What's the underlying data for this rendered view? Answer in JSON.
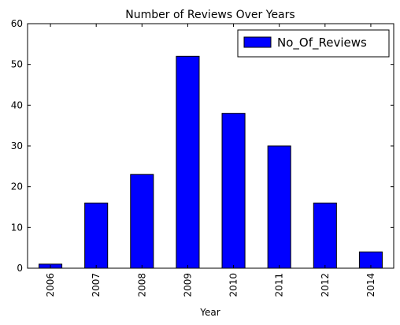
{
  "chart_data": {
    "type": "bar",
    "title": "Number of Reviews Over Years",
    "xlabel": "Year",
    "ylabel": "",
    "categories": [
      "2006",
      "2007",
      "2008",
      "2009",
      "2010",
      "2011",
      "2012",
      "2014"
    ],
    "series": [
      {
        "name": "No_Of_Reviews",
        "values": [
          1,
          16,
          23,
          52,
          38,
          30,
          16,
          4
        ],
        "color": "#0000ff"
      }
    ],
    "ylim": [
      0,
      60
    ],
    "yticks": [
      0,
      10,
      20,
      30,
      40,
      50,
      60
    ],
    "grid": false,
    "legend_position": "top-right"
  }
}
